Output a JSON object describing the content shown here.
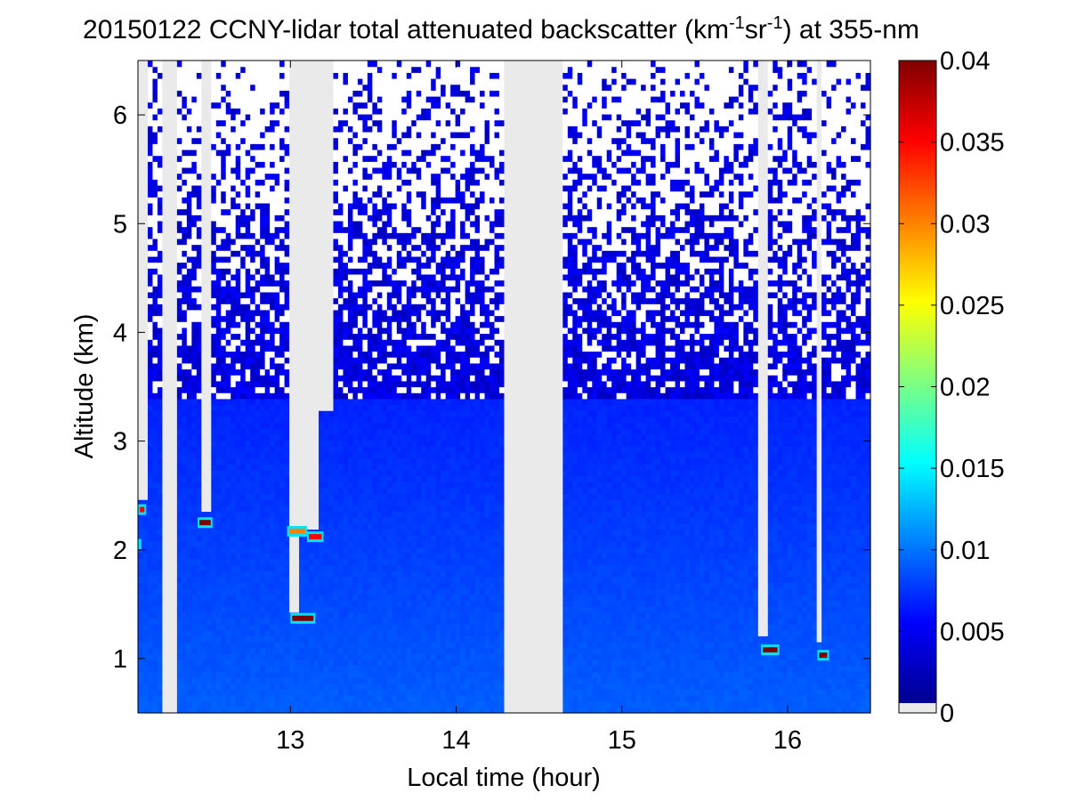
{
  "chart_data": {
    "type": "heatmap",
    "title": {
      "prefix": "20150122 CCNY-lidar total attenuated backscatter (km",
      "sup1": "-1",
      "mid": "sr",
      "sup2": "-1",
      "suffix": ") at 355-nm"
    },
    "xlabel": "Local time (hour)",
    "ylabel": "Altitude (km)",
    "xlim": [
      12.08,
      16.5
    ],
    "ylim": [
      0.5,
      6.5
    ],
    "xticks": [
      13,
      14,
      15,
      16
    ],
    "yticks": [
      1,
      2,
      3,
      4,
      5,
      6
    ],
    "colorbar": {
      "ticks": [
        "0",
        "0.005",
        "0.01",
        "0.015",
        "0.02",
        "0.025",
        "0.03",
        "0.035",
        "0.04"
      ],
      "range": [
        0,
        0.04
      ],
      "colormap": "jet",
      "no_data_color": "#eaeaea"
    },
    "no_data_periods": [
      {
        "start": 12.22,
        "end": 12.32,
        "from_km": 0.5
      },
      {
        "start": 14.3,
        "end": 14.64,
        "from_km": 0.5
      },
      {
        "start": 12.08,
        "end": 12.13,
        "from_km": 2.45
      },
      {
        "start": 12.45,
        "end": 12.52,
        "from_km": 2.35
      },
      {
        "start": 13.0,
        "end": 13.05,
        "from_km": 1.45
      },
      {
        "start": 13.05,
        "end": 13.18,
        "from_km": 2.2
      },
      {
        "start": 13.18,
        "end": 13.26,
        "from_km": 3.3
      },
      {
        "start": 15.83,
        "end": 15.87,
        "from_km": 1.2
      },
      {
        "start": 16.19,
        "end": 16.22,
        "from_km": 1.15
      }
    ],
    "cloud_layers": [
      {
        "start": 12.08,
        "end": 12.13,
        "alt_km": 2.37,
        "value": 0.035
      },
      {
        "start": 12.08,
        "end": 12.1,
        "alt_km": 2.05,
        "value": 0.025
      },
      {
        "start": 12.44,
        "end": 12.53,
        "alt_km": 2.25,
        "value": 0.04
      },
      {
        "start": 12.98,
        "end": 13.1,
        "alt_km": 2.17,
        "value": 0.03
      },
      {
        "start": 13.1,
        "end": 13.2,
        "alt_km": 2.12,
        "value": 0.035
      },
      {
        "start": 13.0,
        "end": 13.15,
        "alt_km": 1.37,
        "value": 0.04
      },
      {
        "start": 15.84,
        "end": 15.95,
        "alt_km": 1.08,
        "value": 0.04
      },
      {
        "start": 16.18,
        "end": 16.25,
        "alt_km": 1.03,
        "value": 0.04
      }
    ],
    "boundary_layer_top_km": 3.4,
    "background_value": 0.002
  }
}
